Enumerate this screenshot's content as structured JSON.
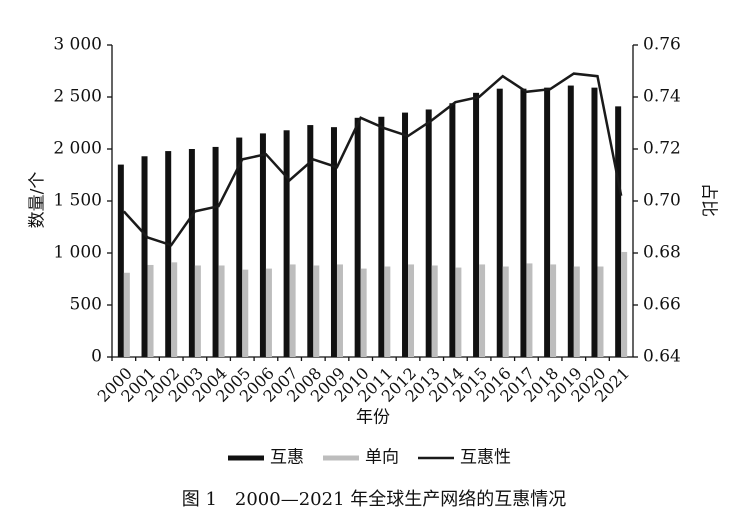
{
  "chart_data": {
    "type": "bar-line",
    "x_label": "年份",
    "y_label": "数量/个",
    "y2_label": "占比",
    "caption": "图 1　2000—2021 年全球生产网络的互惠情况",
    "categories": [
      "2000",
      "2001",
      "2002",
      "2003",
      "2004",
      "2005",
      "2006",
      "2007",
      "2008",
      "2009",
      "2010",
      "2011",
      "2012",
      "2013",
      "2014",
      "2015",
      "2016",
      "2017",
      "2018",
      "2019",
      "2020",
      "2021"
    ],
    "series": [
      {
        "name": "互惠",
        "type": "bar",
        "color": "#111111",
        "values": [
          1850,
          1930,
          1980,
          2000,
          2020,
          2110,
          2150,
          2180,
          2230,
          2210,
          2300,
          2310,
          2350,
          2380,
          2440,
          2540,
          2580,
          2580,
          2590,
          2610,
          2590,
          2410
        ]
      },
      {
        "name": "单向",
        "type": "bar",
        "color": "#bdbdbd",
        "values": [
          810,
          885,
          910,
          880,
          880,
          840,
          850,
          890,
          880,
          890,
          850,
          870,
          890,
          880,
          860,
          890,
          870,
          900,
          890,
          870,
          870,
          1010
        ]
      },
      {
        "name": "互惠性",
        "type": "line",
        "axis": "y2",
        "color": "#1a1a1a",
        "values": [
          0.696,
          0.686,
          0.683,
          0.696,
          0.698,
          0.716,
          0.718,
          0.708,
          0.716,
          0.713,
          0.732,
          0.728,
          0.725,
          0.731,
          0.738,
          0.74,
          0.748,
          0.742,
          0.743,
          0.749,
          0.748,
          0.702
        ]
      }
    ],
    "ylim": [
      0,
      3000
    ],
    "yticks": [
      0,
      500,
      {
        "value": 1000,
        "label": "1 000"
      },
      {
        "value": 1500,
        "label": "1 500"
      },
      {
        "value": 2000,
        "label": "2 000"
      },
      {
        "value": 2500,
        "label": "2 500"
      },
      {
        "value": 3000,
        "label": "3 000"
      }
    ],
    "y2lim": [
      0.64,
      0.76
    ],
    "y2ticks": [
      0.64,
      0.66,
      0.68,
      {
        "value": 0.7,
        "label": "0.70"
      },
      0.72,
      0.74,
      0.76
    ]
  }
}
